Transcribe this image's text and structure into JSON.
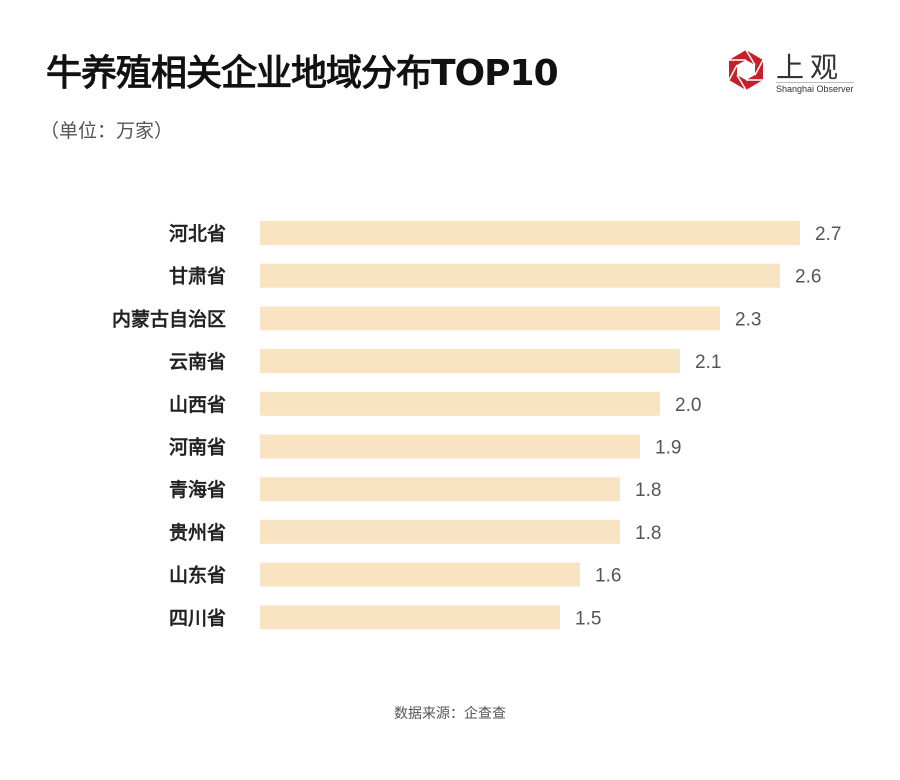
{
  "header": {
    "title": "牛养殖相关企业地域分布TOP10",
    "unit": "（单位：万家）"
  },
  "logo": {
    "text": "上观",
    "sub": "Shanghai Observer",
    "color": "#c8202a"
  },
  "footer": {
    "source": "数据来源：企查查"
  },
  "chart_data": {
    "type": "bar",
    "orientation": "horizontal",
    "title": "牛养殖相关企业地域分布TOP10",
    "unit": "（单位：万家）",
    "categories": [
      "河北省",
      "甘肃省",
      "内蒙古自治区",
      "云南省",
      "山西省",
      "河南省",
      "青海省",
      "贵州省",
      "山东省",
      "四川省"
    ],
    "values": [
      2.7,
      2.6,
      2.3,
      2.1,
      2.0,
      1.9,
      1.8,
      1.8,
      1.6,
      1.5
    ],
    "value_labels": [
      "2.7",
      "2.6",
      "2.3",
      "2.1",
      "2.0",
      "1.9",
      "1.8",
      "1.8",
      "1.6",
      "1.5"
    ],
    "bar_color": "#f8e3c2",
    "grid": false,
    "legend": "none"
  }
}
